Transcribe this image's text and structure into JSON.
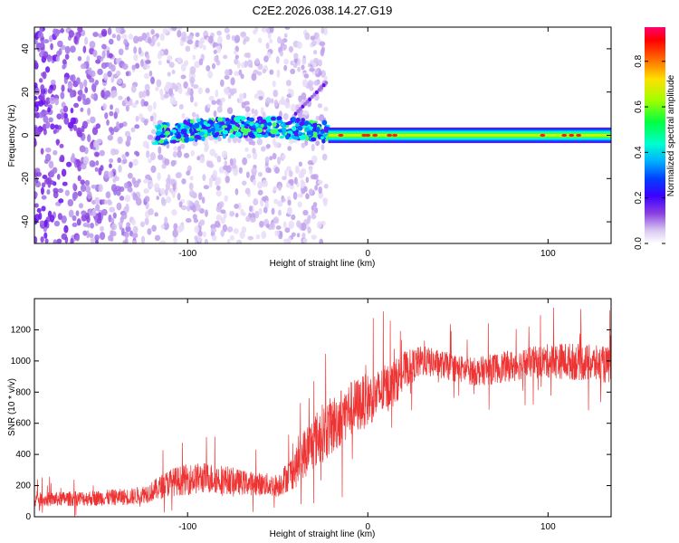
{
  "title": "C2E2.2026.038.14.27.G19",
  "chart_data": [
    {
      "type": "heatmap",
      "name": "spectrogram",
      "xlabel": "Height of straight line (km)",
      "ylabel": "Frequency (Hz)",
      "xlim": [
        -185,
        135
      ],
      "ylim": [
        -50,
        50
      ],
      "xticks": [
        -100,
        0,
        100
      ],
      "yticks": [
        -40,
        -20,
        0,
        20,
        40
      ],
      "colorbar": {
        "label": "Normalized spectral amplitude",
        "range": [
          0.0,
          0.95
        ],
        "ticks": [
          0.0,
          0.2,
          0.4,
          0.6,
          0.8
        ],
        "tick_labels": [
          "0.0",
          "0.2",
          "0.4",
          "0.6",
          "0.8"
        ],
        "colormap": [
          "#ffffff",
          "#d9c8f2",
          "#8a3fe0",
          "#6600ff",
          "#0000ff",
          "#00a0ff",
          "#00ffff",
          "#00ff80",
          "#00ff00",
          "#c0ff00",
          "#ffff00",
          "#ff8000",
          "#ff0000",
          "#ff0060"
        ]
      },
      "regions": [
        {
          "x": [
            -185,
            -118
          ],
          "freq_center": 0,
          "freq_spread": 50,
          "amplitude": 0.12,
          "description_level": "scattered noise"
        },
        {
          "x": [
            -118,
            -22
          ],
          "freq_center_start": 0,
          "freq_center_end": 4,
          "freq_halfwidth": 4,
          "amplitude": 0.35
        },
        {
          "x": [
            -22,
            135
          ],
          "freq_center": 0,
          "freq_halfwidth": 3,
          "amplitude": 0.45,
          "peaks_at": [
            -15,
            -2,
            0,
            4,
            12,
            15,
            97,
            109,
            113,
            117
          ]
        }
      ]
    },
    {
      "type": "line",
      "name": "snr",
      "xlabel": "Height of straight line (km)",
      "ylabel": "SNR (10 * v/v)",
      "xlim": [
        -185,
        135
      ],
      "ylim": [
        0,
        1400
      ],
      "xticks": [
        -100,
        0,
        100
      ],
      "yticks": [
        0,
        200,
        400,
        600,
        800,
        1000,
        1200
      ],
      "color": "#ee3333",
      "x": [
        -185,
        -150,
        -130,
        -120,
        -110,
        -100,
        -90,
        -80,
        -70,
        -60,
        -50,
        -40,
        -35,
        -30,
        -25,
        -20,
        -15,
        -10,
        -5,
        0,
        5,
        10,
        15,
        20,
        25,
        30,
        40,
        50,
        60,
        70,
        80,
        90,
        100,
        110,
        120,
        135
      ],
      "y": [
        110,
        120,
        130,
        160,
        220,
        240,
        250,
        240,
        220,
        210,
        200,
        310,
        420,
        480,
        540,
        580,
        640,
        690,
        720,
        750,
        780,
        820,
        860,
        940,
        970,
        1000,
        980,
        950,
        930,
        950,
        970,
        990,
        1000,
        1000,
        990,
        970
      ],
      "noise_amplitude": [
        90,
        100,
        110,
        130,
        180,
        200,
        200,
        190,
        160,
        150,
        150,
        250,
        320,
        360,
        380,
        380,
        380,
        360,
        360,
        340,
        320,
        320,
        300,
        240,
        220,
        200,
        180,
        180,
        180,
        200,
        200,
        200,
        220,
        240,
        240,
        240
      ]
    }
  ]
}
